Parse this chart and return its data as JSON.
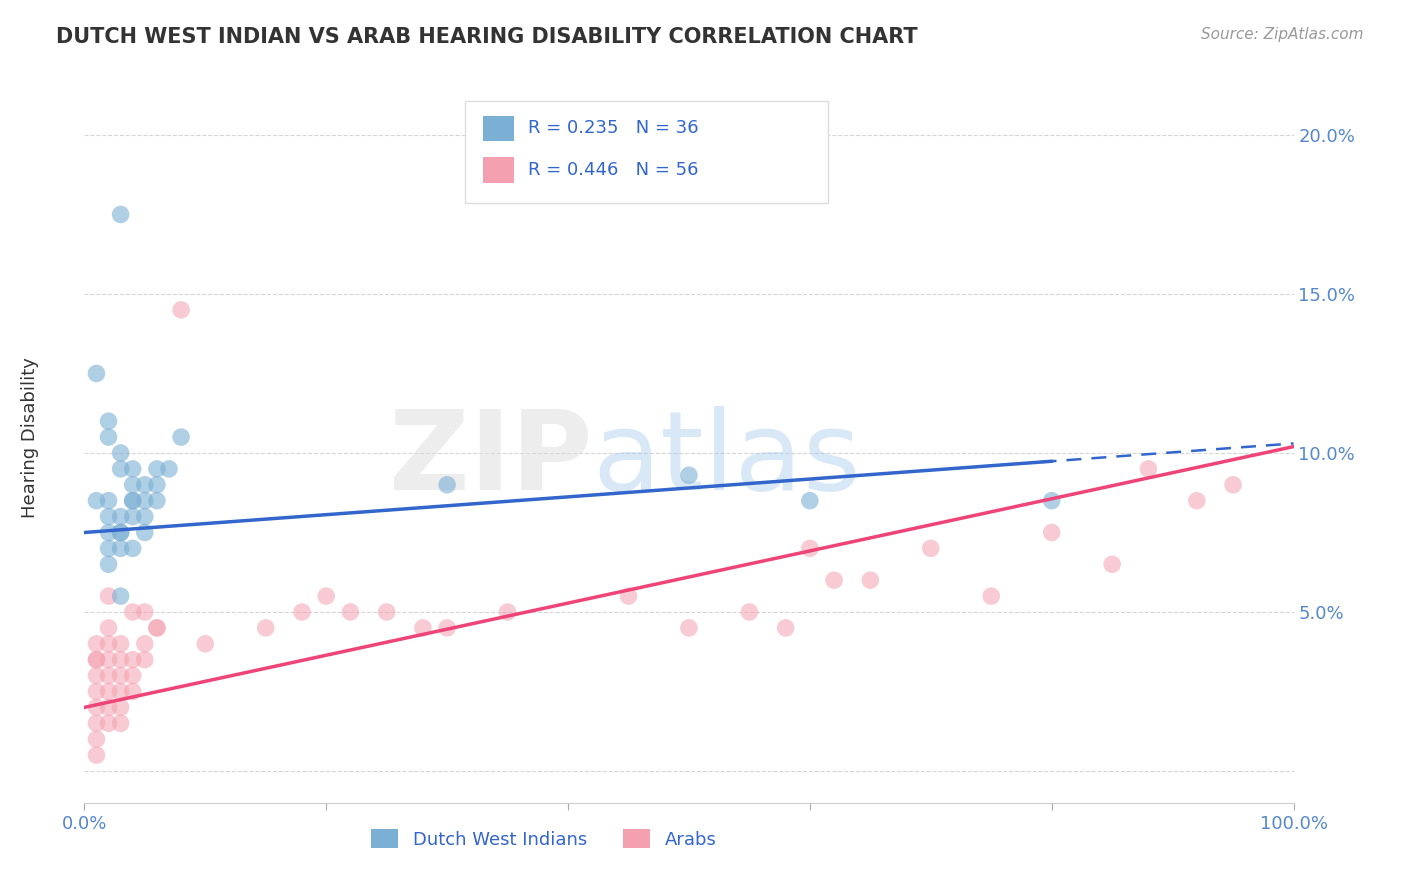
{
  "title": "DUTCH WEST INDIAN VS ARAB HEARING DISABILITY CORRELATION CHART",
  "source": "Source: ZipAtlas.com",
  "ylabel": "Hearing Disability",
  "xlim": [
    0,
    100
  ],
  "ylim": [
    -1,
    22
  ],
  "yticks": [
    0,
    5,
    10,
    15,
    20
  ],
  "ytick_labels": [
    "",
    "5.0%",
    "10.0%",
    "15.0%",
    "20.0%"
  ],
  "xticks": [
    0,
    20,
    40,
    60,
    80,
    100
  ],
  "xtick_labels": [
    "0.0%",
    "",
    "",
    "",
    "",
    "100.0%"
  ],
  "blue_R": 0.235,
  "blue_N": 36,
  "pink_R": 0.446,
  "pink_N": 56,
  "blue_color": "#7BAFD4",
  "pink_color": "#F4A0B0",
  "blue_line_color": "#3366CC",
  "pink_line_color": "#EE4477",
  "legend_blue_label": "Dutch West Indians",
  "legend_pink_label": "Arabs",
  "blue_trend_intercept": 7.5,
  "blue_trend_slope": 0.028,
  "pink_trend_intercept": 2.0,
  "pink_trend_slope": 0.082,
  "blue_solid_end": 80,
  "blue_scatter_x": [
    1,
    2,
    2,
    3,
    3,
    4,
    4,
    5,
    5,
    6,
    6,
    7,
    8,
    2,
    3,
    4,
    5,
    6,
    2,
    3,
    4,
    2,
    3,
    4,
    5,
    1,
    2,
    3,
    4,
    2,
    3,
    30,
    50,
    60,
    80,
    3
  ],
  "blue_scatter_y": [
    12.5,
    11.0,
    10.5,
    10.0,
    9.5,
    9.5,
    9.0,
    9.0,
    8.5,
    9.5,
    8.5,
    9.5,
    10.5,
    8.5,
    8.0,
    8.5,
    8.0,
    9.0,
    7.5,
    7.5,
    8.0,
    7.0,
    7.0,
    7.0,
    7.5,
    8.5,
    8.0,
    7.5,
    8.5,
    6.5,
    5.5,
    9.0,
    9.3,
    8.5,
    8.5,
    17.5
  ],
  "pink_scatter_x": [
    1,
    1,
    1,
    1,
    1,
    1,
    1,
    1,
    1,
    2,
    2,
    2,
    2,
    2,
    2,
    2,
    3,
    3,
    3,
    3,
    3,
    4,
    4,
    4,
    5,
    5,
    6,
    10,
    15,
    18,
    20,
    22,
    25,
    28,
    30,
    35,
    45,
    50,
    55,
    58,
    60,
    62,
    65,
    70,
    75,
    80,
    85,
    88,
    92,
    95,
    2,
    3,
    4,
    5,
    6,
    8
  ],
  "pink_scatter_y": [
    3.5,
    3.0,
    2.5,
    2.0,
    1.5,
    1.0,
    0.5,
    4.0,
    3.5,
    3.5,
    3.0,
    2.5,
    2.0,
    1.5,
    4.5,
    4.0,
    3.5,
    3.0,
    2.5,
    2.0,
    1.5,
    3.5,
    3.0,
    2.5,
    4.0,
    3.5,
    4.5,
    4.0,
    4.5,
    5.0,
    5.5,
    5.0,
    5.0,
    4.5,
    4.5,
    5.0,
    5.5,
    4.5,
    5.0,
    4.5,
    7.0,
    6.0,
    6.0,
    7.0,
    5.5,
    7.5,
    6.5,
    9.5,
    8.5,
    9.0,
    5.5,
    4.0,
    5.0,
    5.0,
    4.5,
    14.5
  ],
  "watermark_zip": "ZIP",
  "watermark_atlas": "atlas",
  "background_color": "#FFFFFF",
  "grid_color": "#CCCCCC",
  "title_color": "#333333",
  "axis_color": "#5588CC",
  "legend_text_color": "#3366CC"
}
